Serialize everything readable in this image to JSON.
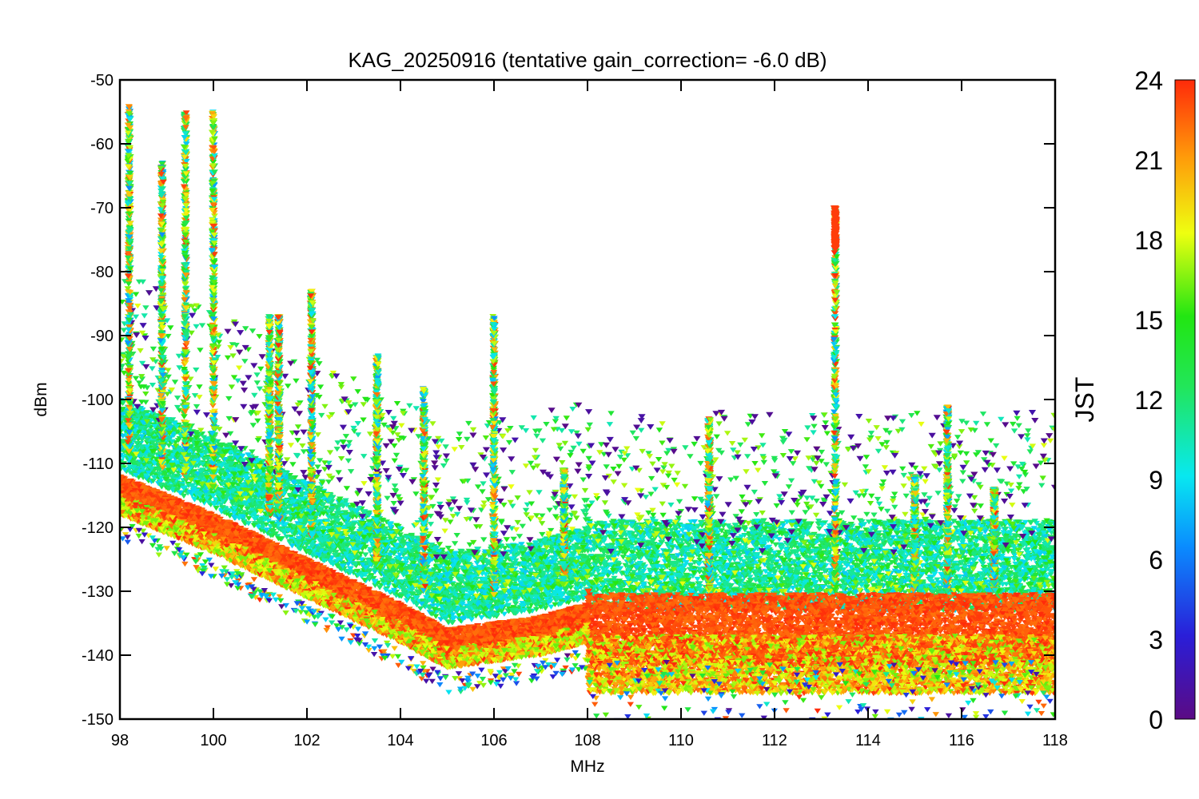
{
  "chart_data": {
    "type": "scatter",
    "title": "KAG_20250916 (tentative gain_correction= -6.0 dB)",
    "xlabel": "MHz",
    "ylabel": "dBm",
    "xlim": [
      98,
      118
    ],
    "ylim": [
      -150,
      -50
    ],
    "xticks": [
      "98",
      "100",
      "102",
      "104",
      "106",
      "108",
      "110",
      "112",
      "114",
      "116",
      "118"
    ],
    "yticks": [
      "-50",
      "-60",
      "-70",
      "-80",
      "-90",
      "-100",
      "-110",
      "-120",
      "-130",
      "-140",
      "-150"
    ],
    "marker": "triangle-down",
    "grid": false,
    "colorbar": {
      "label": "JST",
      "range": [
        0,
        24
      ],
      "ticks": [
        "24",
        "21",
        "18",
        "15",
        "12",
        "9",
        "6",
        "3",
        "0"
      ],
      "colormap": "rainbow (purple 0 → red 24)"
    },
    "noise_floor": {
      "description": "dense band of measurements; red = evening/night hours",
      "points": [
        [
          98,
          -114
        ],
        [
          100,
          -120
        ],
        [
          102,
          -127
        ],
        [
          104,
          -134
        ],
        [
          105,
          -138
        ],
        [
          106,
          -137
        ],
        [
          107,
          -136
        ],
        [
          108,
          -134
        ],
        [
          108.05,
          -136
        ],
        [
          115,
          -136
        ],
        [
          118,
          -136
        ]
      ]
    },
    "peak_signals": [
      {
        "freq_mhz": 98.2,
        "max_dbm": -54
      },
      {
        "freq_mhz": 98.9,
        "max_dbm": -63
      },
      {
        "freq_mhz": 99.4,
        "max_dbm": -55
      },
      {
        "freq_mhz": 100.0,
        "max_dbm": -55
      },
      {
        "freq_mhz": 101.2,
        "max_dbm": -87
      },
      {
        "freq_mhz": 101.4,
        "max_dbm": -87
      },
      {
        "freq_mhz": 102.1,
        "max_dbm": -83
      },
      {
        "freq_mhz": 103.5,
        "max_dbm": -93
      },
      {
        "freq_mhz": 104.5,
        "max_dbm": -98
      },
      {
        "freq_mhz": 106.0,
        "max_dbm": -87
      },
      {
        "freq_mhz": 107.5,
        "max_dbm": -111
      },
      {
        "freq_mhz": 110.6,
        "max_dbm": -103
      },
      {
        "freq_mhz": 113.3,
        "max_dbm": -70
      },
      {
        "freq_mhz": 115.0,
        "max_dbm": -112
      },
      {
        "freq_mhz": 115.7,
        "max_dbm": -101
      },
      {
        "freq_mhz": 116.7,
        "max_dbm": -114
      }
    ]
  }
}
